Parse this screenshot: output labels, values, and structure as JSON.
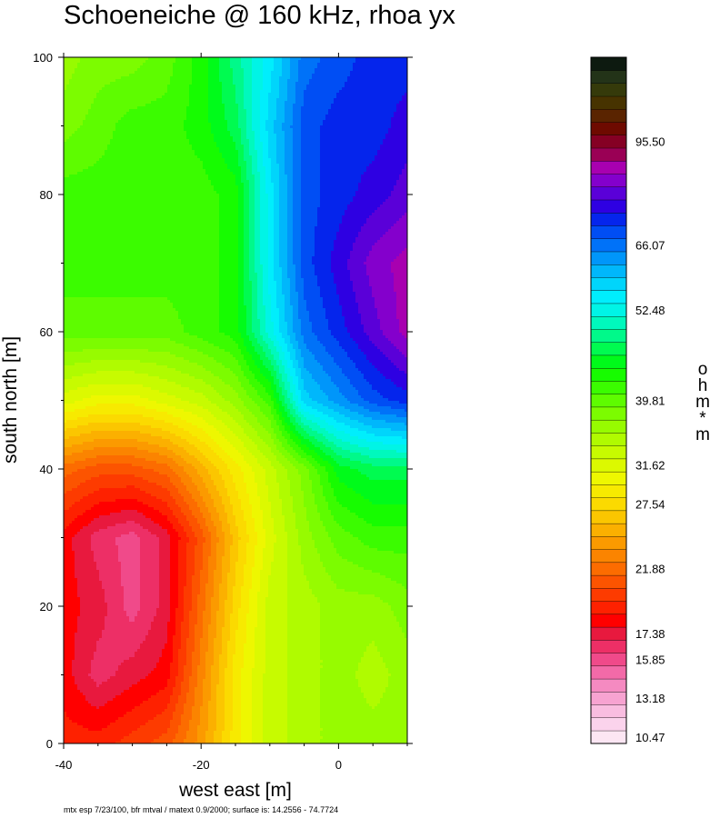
{
  "chart_data": {
    "type": "heatmap",
    "title": "Schoeneiche @ 160 kHz, rhoa yx",
    "xlabel": "west east [m]",
    "ylabel": "south north [m]",
    "xlim": [
      -40,
      10
    ],
    "ylim": [
      0,
      100
    ],
    "x_ticks": [
      "-40",
      "-20",
      "0"
    ],
    "y_ticks": [
      "0",
      "20",
      "40",
      "60",
      "80",
      "100"
    ],
    "x_tick_values": [
      -40,
      -20,
      0
    ],
    "y_tick_values": [
      0,
      20,
      40,
      60,
      80,
      100
    ],
    "footer": "mtx esp 7/23/100, bfr mtval / matext 0.9/2000; surface is: 14.2556 - 74.7724",
    "surface_range": [
      14.2556,
      74.7724
    ],
    "colorbar": {
      "unit_label": "ohm*m",
      "unit_chars": [
        "o",
        "h",
        "m",
        "*",
        "m"
      ],
      "labels": [
        "95.50",
        "66.07",
        "52.48",
        "39.81",
        "31.62",
        "27.54",
        "21.88",
        "17.38",
        "15.85",
        "13.18",
        "10.47"
      ],
      "label_bins": [
        46,
        38,
        33,
        26,
        21,
        18,
        13,
        8,
        6,
        3,
        0
      ],
      "levels": [
        {
          "color": "#fce6f3"
        },
        {
          "color": "#fbd3ec"
        },
        {
          "color": "#f9bde0"
        },
        {
          "color": "#f7a3d1"
        },
        {
          "color": "#f58ac1"
        },
        {
          "color": "#f36aa8"
        },
        {
          "color": "#f04a8a"
        },
        {
          "color": "#ed2f66"
        },
        {
          "color": "#e8193e"
        },
        {
          "color": "#ff0000"
        },
        {
          "color": "#fe2100"
        },
        {
          "color": "#fd3b00"
        },
        {
          "color": "#fc5400"
        },
        {
          "color": "#fc6c00"
        },
        {
          "color": "#fb8400"
        },
        {
          "color": "#fb9a00"
        },
        {
          "color": "#fbb000"
        },
        {
          "color": "#fbc600"
        },
        {
          "color": "#fbda00"
        },
        {
          "color": "#f7ea00"
        },
        {
          "color": "#eef700"
        },
        {
          "color": "#dcf900"
        },
        {
          "color": "#c7fb00"
        },
        {
          "color": "#b0fb00"
        },
        {
          "color": "#97fb00"
        },
        {
          "color": "#7cfc00"
        },
        {
          "color": "#5efc00"
        },
        {
          "color": "#3bfc00"
        },
        {
          "color": "#17fc00"
        },
        {
          "color": "#00fb1a"
        },
        {
          "color": "#00fb50"
        },
        {
          "color": "#00f98a"
        },
        {
          "color": "#00f9bd"
        },
        {
          "color": "#00f4e6"
        },
        {
          "color": "#00eefc"
        },
        {
          "color": "#00d5fb"
        },
        {
          "color": "#00b7fb"
        },
        {
          "color": "#0096fa"
        },
        {
          "color": "#0072f8"
        },
        {
          "color": "#004ef4"
        },
        {
          "color": "#0525ec"
        },
        {
          "color": "#2e00e2"
        },
        {
          "color": "#5a00d8"
        },
        {
          "color": "#8400cc"
        },
        {
          "color": "#a800b0"
        },
        {
          "color": "#9a0055"
        },
        {
          "color": "#850024"
        },
        {
          "color": "#6e0a00"
        },
        {
          "color": "#5a2400"
        },
        {
          "color": "#473300"
        },
        {
          "color": "#353a0a"
        },
        {
          "color": "#233318"
        },
        {
          "color": "#0d1a10"
        }
      ]
    },
    "field_grid": {
      "x": [
        -40,
        -35,
        -30,
        -25,
        -20,
        -15,
        -10,
        -5,
        0,
        5,
        10
      ],
      "y": [
        0,
        10,
        20,
        30,
        40,
        50,
        60,
        70,
        80,
        90,
        100
      ],
      "bins": [
        [
          10,
          10,
          11,
          12,
          15,
          19,
          22,
          23,
          24,
          24,
          24
        ],
        [
          9,
          7,
          8,
          9,
          14,
          19,
          22,
          23,
          24,
          23,
          24
        ],
        [
          9,
          8,
          6,
          8,
          13,
          18,
          22,
          23,
          24,
          24,
          25
        ],
        [
          9,
          7,
          6,
          8,
          12,
          17,
          21,
          24,
          26,
          27,
          27
        ],
        [
          13,
          12,
          12,
          13,
          16,
          19,
          22,
          25,
          29,
          30,
          30
        ],
        [
          21,
          20,
          20,
          21,
          22,
          24,
          27,
          35,
          37,
          39,
          40
        ],
        [
          26,
          26,
          26,
          26,
          27,
          28,
          33,
          38,
          40,
          42,
          44
        ],
        [
          27,
          27,
          27,
          27,
          27,
          28,
          34,
          39,
          41,
          43,
          44
        ],
        [
          27,
          27,
          27,
          27,
          27,
          28,
          34,
          39,
          40,
          41,
          42
        ],
        [
          25,
          26,
          27,
          27,
          28,
          30,
          35,
          39,
          40,
          40,
          41
        ],
        [
          24,
          25,
          25,
          26,
          28,
          31,
          34,
          38,
          39,
          40,
          40
        ]
      ]
    }
  }
}
